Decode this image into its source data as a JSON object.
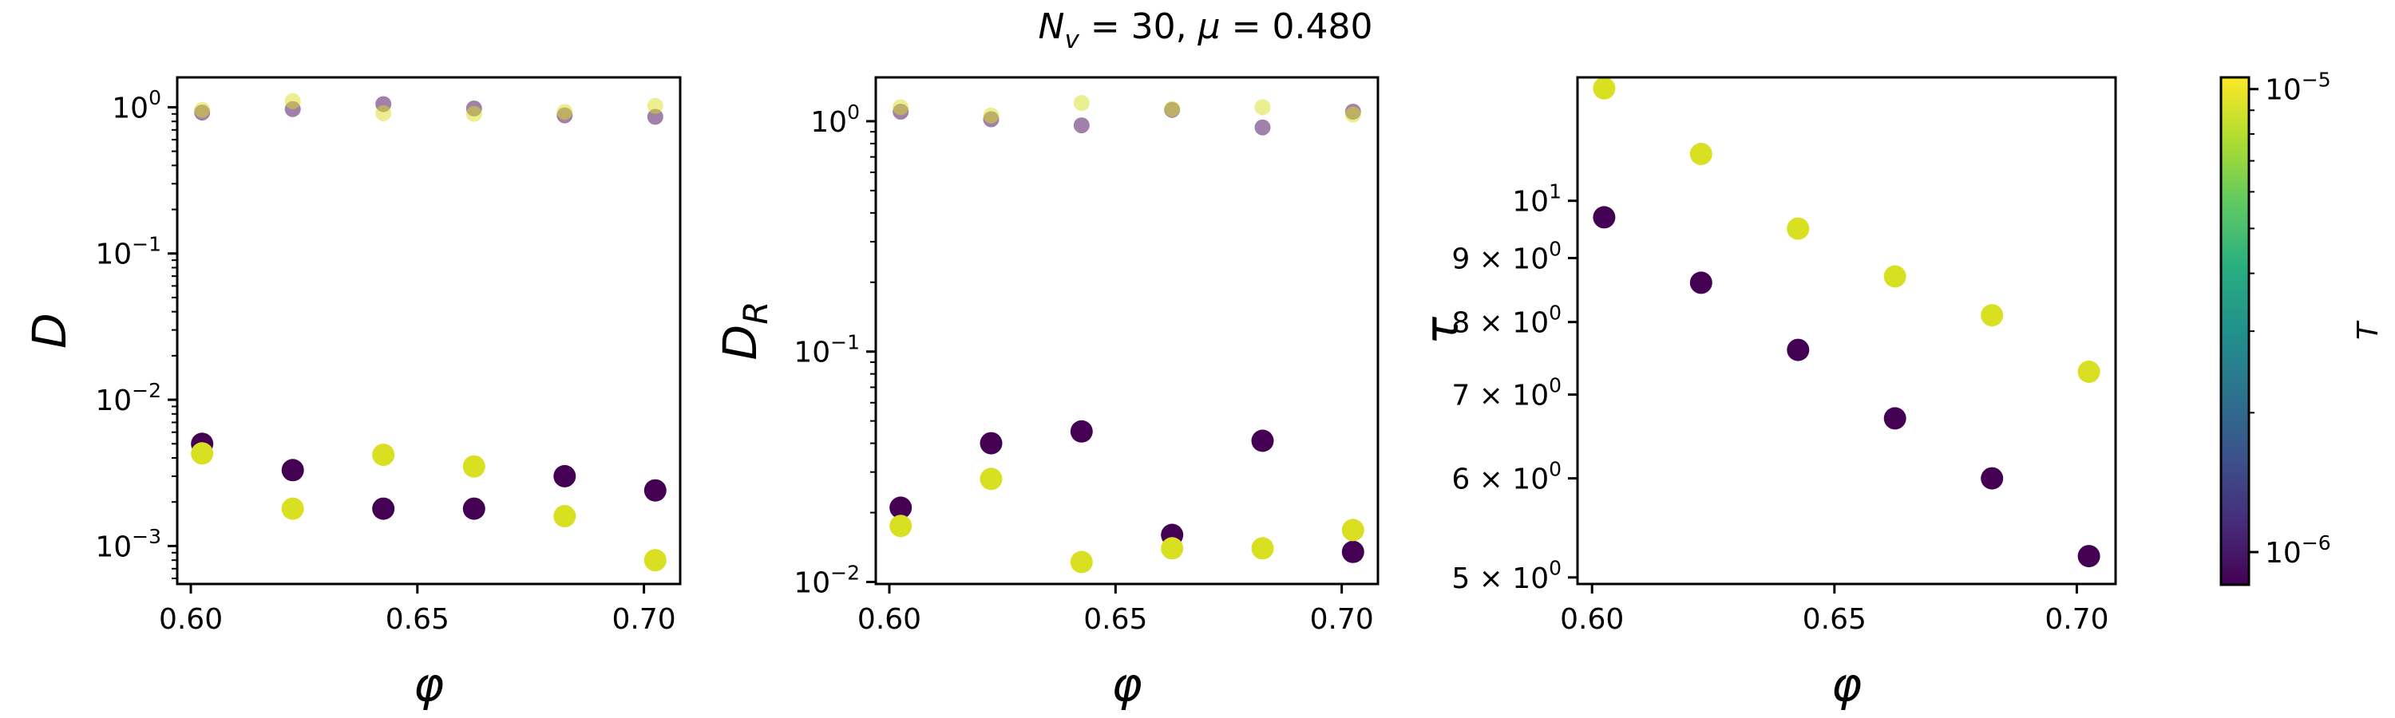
{
  "suptitle": "N_v = 30, μ = 0.480",
  "colors": {
    "high_T": "#d9e021",
    "low_T": "#440154",
    "colorbar_stops": [
      "#440154",
      "#472d7b",
      "#3b528b",
      "#2c728e",
      "#21918c",
      "#28ae80",
      "#5ec962",
      "#addc30",
      "#fde725"
    ]
  },
  "colorbar": {
    "label": "T",
    "scale": "log",
    "min": 8.5e-07,
    "max": 1.06e-05,
    "ticks": [
      {
        "value": 1e-05,
        "label": "10^-5"
      },
      {
        "value": 1e-06,
        "label": "10^-6"
      }
    ]
  },
  "chart_data": [
    {
      "type": "scatter",
      "name": "D",
      "xlabel": "φ",
      "ylabel": "D",
      "yscale": "log",
      "xlim": [
        0.597,
        0.708
      ],
      "ylim": [
        0.00055,
        1.6
      ],
      "xticks": [
        {
          "value": 0.6,
          "label": "0.60"
        },
        {
          "value": 0.65,
          "label": "0.65"
        },
        {
          "value": 0.7,
          "label": "0.70"
        }
      ],
      "yticks": [
        {
          "value": 0.001,
          "label": "10^-3"
        },
        {
          "value": 0.01,
          "label": "10^-2"
        },
        {
          "value": 0.1,
          "label": "10^-1"
        },
        {
          "value": 1,
          "label": "10^0"
        }
      ],
      "series": [
        {
          "color_key": "low_T",
          "faint": false,
          "x": [
            0.6025,
            0.6225,
            0.6425,
            0.6625,
            0.6825,
            0.7025
          ],
          "y": [
            0.005,
            0.0033,
            0.0018,
            0.0018,
            0.003,
            0.0024
          ]
        },
        {
          "color_key": "high_T",
          "faint": false,
          "x": [
            0.6025,
            0.6225,
            0.6425,
            0.6625,
            0.6825,
            0.7025
          ],
          "y": [
            0.0043,
            0.0018,
            0.0042,
            0.0035,
            0.0016,
            0.0008
          ]
        },
        {
          "color_key": "low_T",
          "faint": true,
          "x": [
            0.6025,
            0.6225,
            0.6425,
            0.6625,
            0.6825,
            0.7025
          ],
          "y": [
            0.92,
            0.97,
            1.05,
            0.98,
            0.88,
            0.86
          ]
        },
        {
          "color_key": "high_T",
          "faint": true,
          "x": [
            0.6025,
            0.6225,
            0.6425,
            0.6625,
            0.6825,
            0.7025
          ],
          "y": [
            0.96,
            1.1,
            0.91,
            0.9,
            0.93,
            1.02
          ]
        }
      ]
    },
    {
      "type": "scatter",
      "name": "D_R",
      "xlabel": "φ",
      "ylabel": "D_R",
      "yscale": "log",
      "xlim": [
        0.597,
        0.708
      ],
      "ylim": [
        0.0098,
        1.55
      ],
      "xticks": [
        {
          "value": 0.6,
          "label": "0.60"
        },
        {
          "value": 0.65,
          "label": "0.65"
        },
        {
          "value": 0.7,
          "label": "0.70"
        }
      ],
      "yticks": [
        {
          "value": 0.01,
          "label": "10^-2"
        },
        {
          "value": 0.1,
          "label": "10^-1"
        },
        {
          "value": 1,
          "label": "10^0"
        }
      ],
      "series": [
        {
          "color_key": "low_T",
          "faint": false,
          "x": [
            0.6025,
            0.6225,
            0.6425,
            0.6625,
            0.6825,
            0.7025
          ],
          "y": [
            0.021,
            0.04,
            0.045,
            0.016,
            0.041,
            0.0135
          ]
        },
        {
          "color_key": "high_T",
          "faint": false,
          "x": [
            0.6025,
            0.6225,
            0.6425,
            0.6625,
            0.6825,
            0.7025
          ],
          "y": [
            0.0175,
            0.028,
            0.0122,
            0.014,
            0.014,
            0.0168
          ]
        },
        {
          "color_key": "low_T",
          "faint": true,
          "x": [
            0.6025,
            0.6225,
            0.6425,
            0.6625,
            0.6825,
            0.7025
          ],
          "y": [
            1.1,
            1.02,
            0.96,
            1.12,
            0.94,
            1.1
          ]
        },
        {
          "color_key": "high_T",
          "faint": true,
          "x": [
            0.6025,
            0.6225,
            0.6425,
            0.6625,
            0.6825,
            0.7025
          ],
          "y": [
            1.15,
            1.06,
            1.2,
            1.13,
            1.15,
            1.07
          ]
        }
      ]
    },
    {
      "type": "scatter",
      "name": "tau",
      "xlabel": "φ",
      "ylabel": "τ",
      "yscale": "log",
      "xlim": [
        0.597,
        0.708
      ],
      "ylim": [
        4.94,
        12.55
      ],
      "xticks": [
        {
          "value": 0.6,
          "label": "0.60"
        },
        {
          "value": 0.65,
          "label": "0.65"
        },
        {
          "value": 0.7,
          "label": "0.70"
        }
      ],
      "yticks": [
        {
          "value": 5,
          "label": "5 × 10^0"
        },
        {
          "value": 6,
          "label": "6 × 10^0"
        },
        {
          "value": 7,
          "label": "7 × 10^0"
        },
        {
          "value": 8,
          "label": "8 × 10^0"
        },
        {
          "value": 9,
          "label": "9 × 10^0"
        },
        {
          "value": 10,
          "label": "10^1"
        }
      ],
      "series": [
        {
          "color_key": "low_T",
          "faint": false,
          "x": [
            0.6025,
            0.6225,
            0.6425,
            0.6625,
            0.6825,
            0.7025
          ],
          "y": [
            9.7,
            8.6,
            7.6,
            6.7,
            6.0,
            5.2
          ]
        },
        {
          "color_key": "high_T",
          "faint": false,
          "x": [
            0.6025,
            0.6225,
            0.6425,
            0.6625,
            0.6825,
            0.7025
          ],
          "y": [
            12.3,
            10.9,
            9.5,
            8.7,
            8.1,
            7.3
          ]
        }
      ]
    }
  ]
}
